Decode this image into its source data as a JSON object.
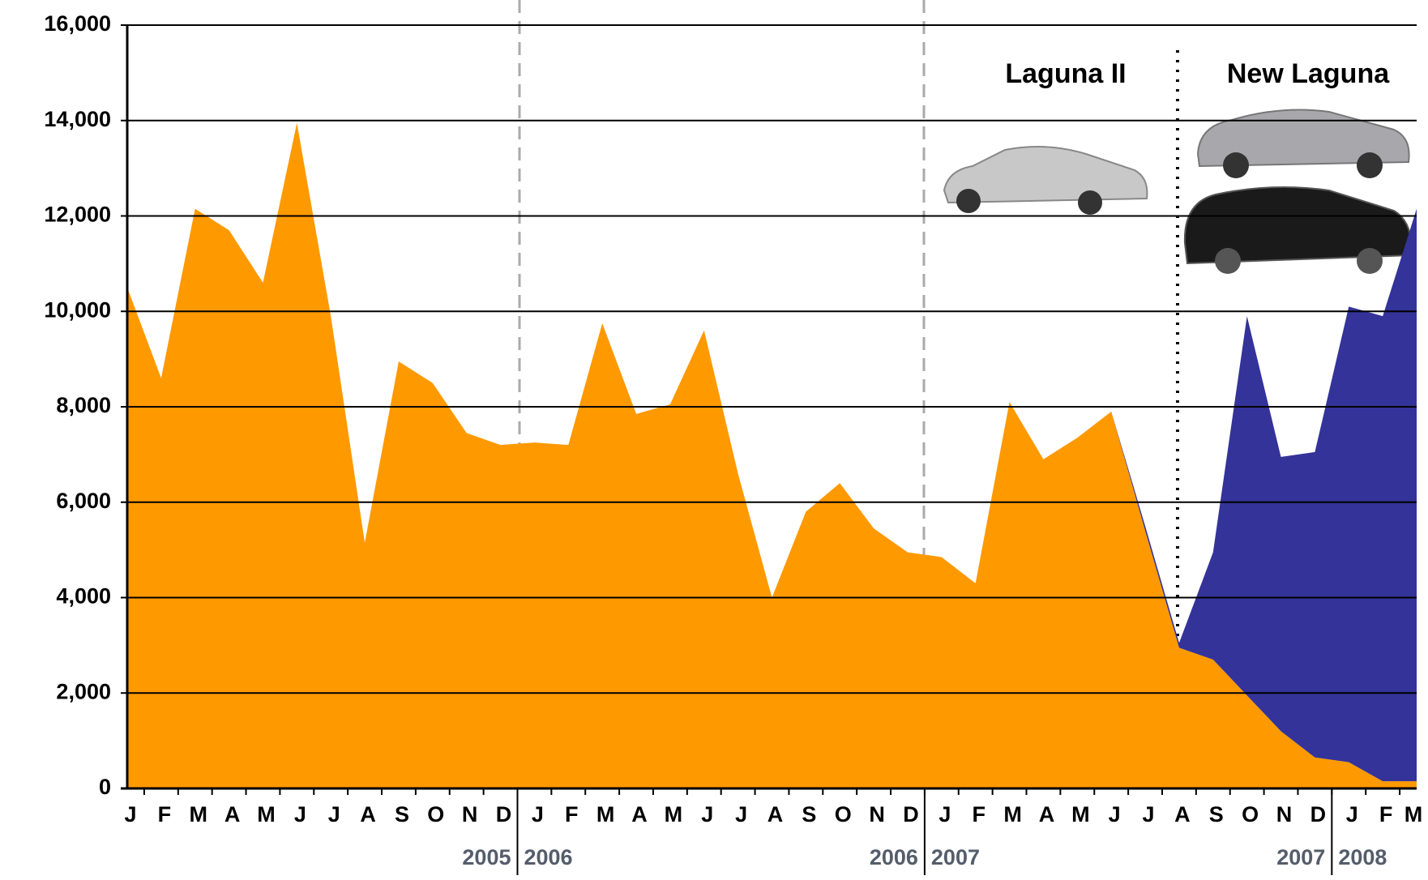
{
  "chart_data": {
    "type": "stacked_area",
    "categories": [
      "J",
      "F",
      "M",
      "A",
      "M",
      "J",
      "J",
      "A",
      "S",
      "O",
      "N",
      "D",
      "J",
      "F",
      "M",
      "A",
      "M",
      "J",
      "J",
      "A",
      "S",
      "O",
      "N",
      "D",
      "J",
      "F",
      "M",
      "A",
      "M",
      "J",
      "J",
      "A",
      "S",
      "O",
      "N",
      "D",
      "J",
      "F",
      "M"
    ],
    "year_labels": [
      [
        "2005",
        "2006"
      ],
      [
        "2006",
        "2007"
      ],
      [
        "2007",
        "2008"
      ]
    ],
    "series": [
      {
        "name": "Laguna II",
        "color": "#ff9900",
        "values": [
          10500,
          8600,
          12150,
          11700,
          10600,
          13950,
          9900,
          5150,
          8950,
          8500,
          7450,
          7200,
          7250,
          7200,
          9750,
          7850,
          8050,
          9600,
          6600,
          4000,
          5800,
          6400,
          5450,
          4950,
          4850,
          4300,
          8100,
          6900,
          7350,
          7900,
          5400,
          2950,
          2700,
          1950,
          1200,
          650,
          550,
          150,
          150
        ]
      },
      {
        "name": "New Laguna",
        "color": "#333399",
        "values": [
          null,
          null,
          null,
          null,
          null,
          null,
          null,
          null,
          null,
          null,
          null,
          null,
          null,
          null,
          null,
          null,
          null,
          null,
          null,
          null,
          null,
          null,
          null,
          null,
          null,
          null,
          null,
          null,
          null,
          0,
          100,
          100,
          2250,
          7950,
          5750,
          6400,
          9550,
          9750,
          12000
        ]
      }
    ],
    "ylim": [
      0,
      16000
    ],
    "yticks": [
      0,
      {
        "value": 2000,
        "label": "2,000"
      },
      {
        "value": 4000,
        "label": "4,000"
      },
      {
        "value": 6000,
        "label": "6,000"
      },
      {
        "value": 8000,
        "label": "8,000"
      },
      {
        "value": 10000,
        "label": "10,000"
      },
      {
        "value": 12000,
        "label": "12,000"
      },
      {
        "value": 14000,
        "label": "14,000"
      },
      {
        "value": 16000,
        "label": "16,000"
      }
    ],
    "grid": true
  }
}
